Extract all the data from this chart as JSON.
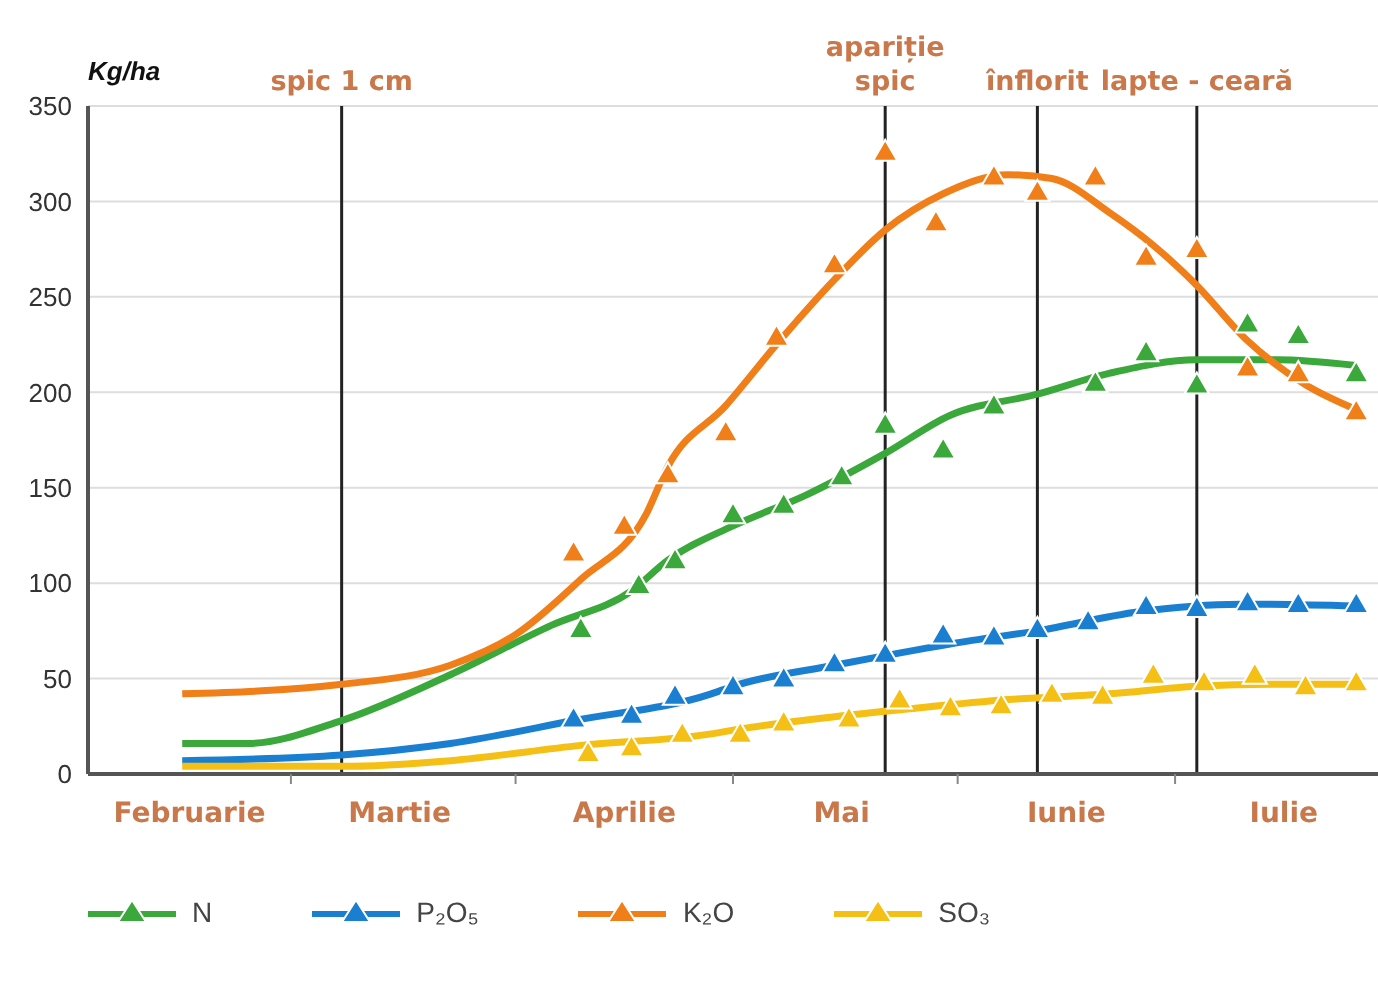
{
  "chart_data": {
    "type": "scatter",
    "ylabel": "Kg/ha",
    "marker": "triangle",
    "grid": "y",
    "legend": "bottom",
    "xlim": [
      "--02-01",
      "--07-29"
    ],
    "ylim": [
      0,
      350
    ],
    "yticks": [
      0,
      50,
      100,
      150,
      200,
      250,
      300,
      350
    ],
    "xticks": [
      {
        "value": "--02-15",
        "label": "Februarie"
      },
      {
        "value": "--03-01",
        "label": null
      },
      {
        "value": "--03-16",
        "label": "Martie"
      },
      {
        "value": "--04-01",
        "label": null
      },
      {
        "value": "--04-16",
        "label": "Aprilie"
      },
      {
        "value": "--05-01",
        "label": null
      },
      {
        "value": "--05-16",
        "label": "Mai"
      },
      {
        "value": "--06-01",
        "label": null
      },
      {
        "value": "--06-16",
        "label": "Iunie"
      },
      {
        "value": "--07-01",
        "label": null
      },
      {
        "value": "--07-16",
        "label": "Iulie"
      }
    ],
    "ref_lines": [
      {
        "axis": "x",
        "value": "--03-08",
        "label": "spic 1 cm",
        "color": "#222222"
      },
      {
        "axis": "x",
        "value": "--05-22",
        "label": "apariție\nspic",
        "color": "#222222"
      },
      {
        "axis": "x",
        "value": "--06-12",
        "label": "înflorit",
        "color": "#222222"
      },
      {
        "axis": "x",
        "value": "--07-04",
        "label": "lapte - ceară",
        "color": "#222222"
      }
    ],
    "series": [
      {
        "name": "N",
        "color": "#3aa83a",
        "x": [
          "--04-10",
          "--04-18",
          "--04-23",
          "--05-01",
          "--05-08",
          "--05-16",
          "--05-22",
          "--05-30",
          "--06-06",
          "--06-20",
          "--06-27",
          "--07-04",
          "--07-11",
          "--07-18",
          "--07-26"
        ],
        "values": [
          75,
          98,
          111,
          135,
          140,
          155,
          182,
          169,
          192,
          204,
          220,
          203,
          235,
          229,
          209
        ]
      },
      {
        "name": "P₂O₅",
        "color": "#1a7fd0",
        "x": [
          "--04-09",
          "--04-17",
          "--04-23",
          "--05-01",
          "--05-08",
          "--05-15",
          "--05-22",
          "--05-30",
          "--06-06",
          "--06-12",
          "--06-19",
          "--06-27",
          "--07-04",
          "--07-11",
          "--07-18",
          "--07-26"
        ],
        "values": [
          28,
          30,
          40,
          45,
          49,
          57,
          62,
          72,
          71,
          75,
          79,
          87,
          86,
          89,
          88,
          88
        ]
      },
      {
        "name": "K₂O",
        "color": "#f07f1a",
        "x": [
          "--04-09",
          "--04-16",
          "--04-22",
          "--04-30",
          "--05-07",
          "--05-15",
          "--05-22",
          "--05-29",
          "--06-06",
          "--06-12",
          "--06-20",
          "--06-27",
          "--07-04",
          "--07-11",
          "--07-18",
          "--07-26"
        ],
        "values": [
          115,
          129,
          156,
          178,
          228,
          266,
          325,
          288,
          312,
          304,
          312,
          270,
          274,
          212,
          209,
          189
        ]
      },
      {
        "name": "SO₃",
        "color": "#f5c016",
        "x": [
          "--04-11",
          "--04-17",
          "--04-24",
          "--05-02",
          "--05-08",
          "--05-17",
          "--05-24",
          "--05-31",
          "--06-07",
          "--06-14",
          "--06-21",
          "--06-28",
          "--07-05",
          "--07-12",
          "--07-19",
          "--07-26"
        ],
        "values": [
          10,
          13,
          20,
          20,
          26,
          28,
          38,
          34,
          35,
          41,
          40,
          51,
          47,
          51,
          45,
          47
        ]
      },
      {
        "type": "line",
        "marker": "none",
        "color": "#3aa83a",
        "x": [
          "--02-14",
          "--02-23",
          "--03-08",
          "--03-23",
          "--04-06",
          "--04-17",
          "--04-22",
          "--05-01",
          "--05-11",
          "--05-22",
          "--05-31",
          "--06-12",
          "--06-22",
          "--07-04",
          "--07-15",
          "--07-26"
        ],
        "values": [
          16,
          16,
          28,
          52,
          78,
          96,
          112,
          130,
          146,
          168,
          188,
          199,
          210,
          217,
          217,
          214
        ]
      },
      {
        "type": "line",
        "marker": "none",
        "color": "#1a7fd0",
        "x": [
          "--02-14",
          "--03-08",
          "--03-23",
          "--04-09",
          "--04-28",
          "--05-01",
          "--05-15",
          "--05-22",
          "--06-03",
          "--06-12",
          "--06-26",
          "--07-10",
          "--07-26"
        ],
        "values": [
          7,
          10,
          16,
          28,
          42,
          46,
          57,
          62,
          70,
          75,
          85,
          89,
          88
        ]
      },
      {
        "type": "line",
        "marker": "none",
        "color": "#f07f1a",
        "x": [
          "--02-14",
          "--03-08",
          "--03-23",
          "--04-01",
          "--04-10",
          "--04-19",
          "--04-22",
          "--04-30",
          "--05-07",
          "--05-15",
          "--05-22",
          "--05-30",
          "--06-08",
          "--06-14",
          "--06-22",
          "--06-28",
          "--07-04",
          "--07-11",
          "--07-19",
          "--07-26"
        ],
        "values": [
          42,
          47,
          57,
          73,
          102,
          136,
          161,
          193,
          225,
          259,
          285,
          304,
          314,
          312,
          294,
          277,
          256,
          227,
          204,
          191
        ]
      },
      {
        "type": "line",
        "marker": "none",
        "color": "#f5c016",
        "x": [
          "--02-14",
          "--03-08",
          "--03-23",
          "--04-10",
          "--04-28",
          "--05-01",
          "--05-15",
          "--05-25",
          "--06-08",
          "--06-22",
          "--07-04",
          "--07-15",
          "--07-26"
        ],
        "values": [
          4,
          4,
          7,
          15,
          21,
          23,
          30,
          34,
          39,
          42,
          46,
          47,
          47
        ]
      }
    ]
  }
}
